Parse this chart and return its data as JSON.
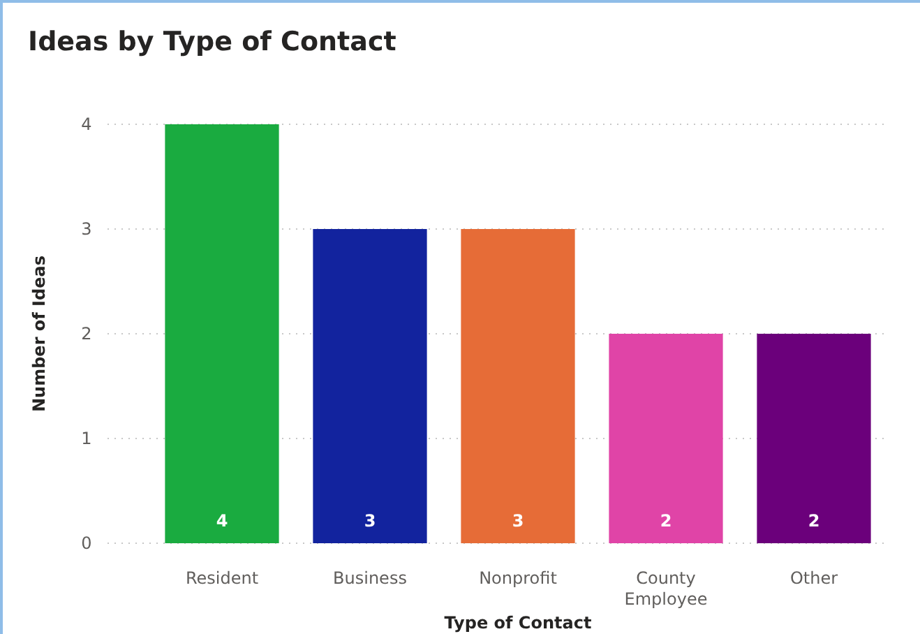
{
  "chart_data": {
    "type": "bar",
    "title": "Ideas by Type of Contact",
    "xlabel": "Type of Contact",
    "ylabel": "Number of Ideas",
    "categories": [
      "Resident",
      "Business",
      "Nonprofit",
      "County Employee",
      "Other"
    ],
    "values": [
      4,
      3,
      3,
      2,
      2
    ],
    "colors": [
      "#1aab40",
      "#12239e",
      "#e66c37",
      "#e044a7",
      "#6b007b"
    ],
    "ylim": [
      0,
      4
    ],
    "yticks": [
      0,
      1,
      2,
      3,
      4
    ],
    "grid": "y",
    "data_labels": true
  }
}
